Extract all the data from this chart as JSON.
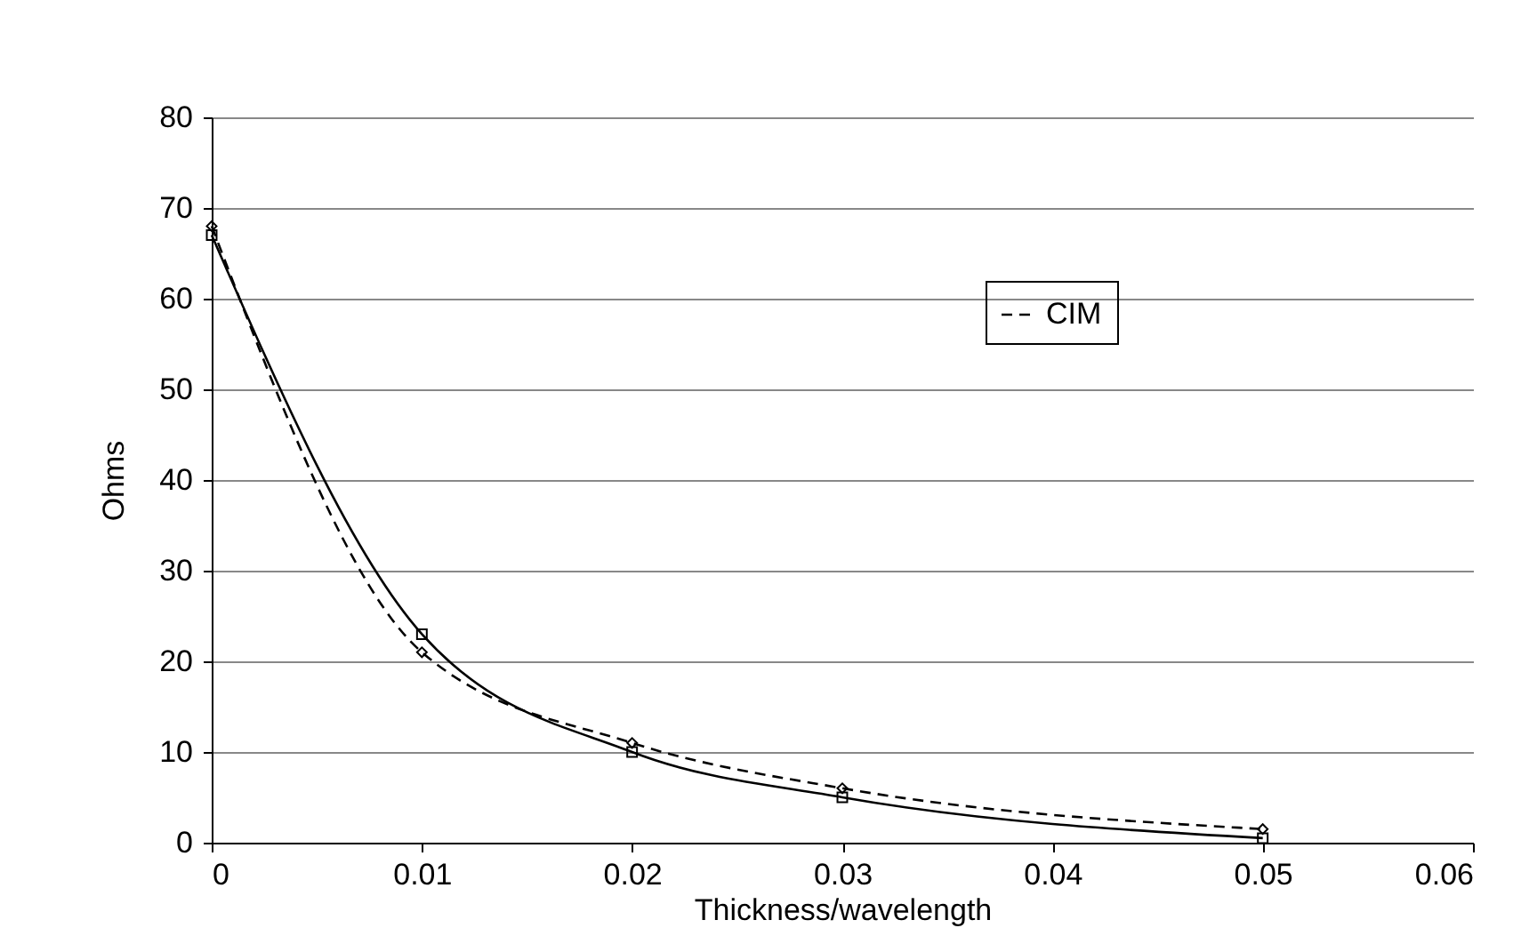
{
  "chart_data": {
    "type": "line",
    "xlabel": "Thickness/wavelength",
    "ylabel": "Ohms",
    "x": [
      0,
      0.01,
      0.02,
      0.03,
      0.05
    ],
    "series": [
      {
        "name": "CIM",
        "color": "#000000",
        "values": [
          68,
          21,
          11,
          6,
          1.5
        ],
        "line_style": "dashed",
        "marker": "diamond"
      },
      {
        "color": "#000000",
        "values": [
          67,
          23,
          10,
          5,
          0.5
        ],
        "line_style": "solid",
        "marker": "square"
      }
    ],
    "xlim": [
      0,
      0.06
    ],
    "xticks": [
      0,
      0.01,
      0.02,
      0.03,
      0.04,
      0.05,
      0.06
    ],
    "ylim": [
      0,
      80
    ],
    "yticks": [
      0,
      10,
      20,
      30,
      40,
      50,
      60,
      70,
      80
    ],
    "grid": "y",
    "legend": "right"
  }
}
